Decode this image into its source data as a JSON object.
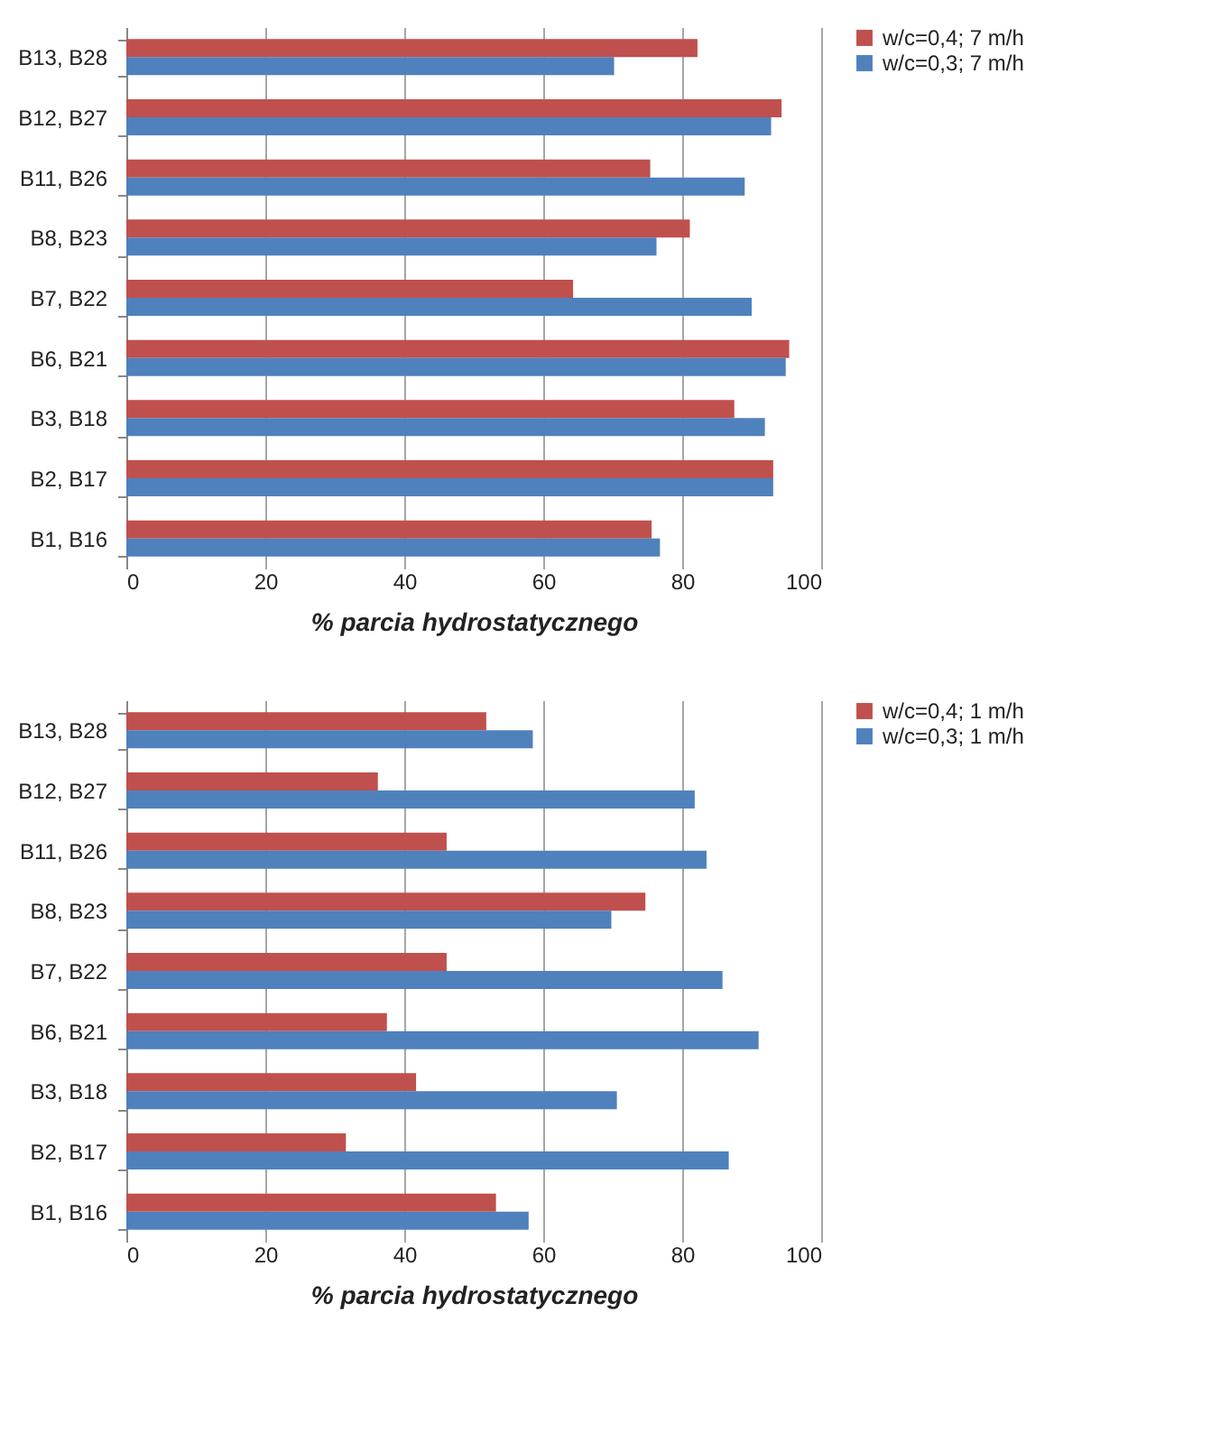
{
  "chart_data": [
    {
      "type": "bar",
      "orientation": "horizontal",
      "xlabel": "% parcia hydrostatycznego",
      "categories": [
        "B13, B28",
        "B12, B27",
        "B11, B26",
        "B8, B23",
        "B7, B22",
        "B6, B21",
        "B3, B18",
        "B2, B17",
        "B1, B16"
      ],
      "series": [
        {
          "name": "w/c=0,4; 7 m/h",
          "color": "#c0504d",
          "values": [
            82.2,
            94.3,
            75.4,
            81.1,
            64.3,
            95.4,
            87.5,
            93.1,
            75.6
          ]
        },
        {
          "name": "w/c=0,3; 7 m/h",
          "color": "#4f81bd",
          "values": [
            70.2,
            92.8,
            89,
            76.3,
            90,
            94.9,
            91.9,
            93.1,
            76.8
          ]
        }
      ],
      "xlim": [
        0,
        100
      ],
      "xticks": [
        0,
        20,
        40,
        60,
        80,
        100
      ],
      "grid": "x",
      "legend": "right"
    },
    {
      "type": "bar",
      "orientation": "horizontal",
      "xlabel": "% parcia hydrostatycznego",
      "categories": [
        "B13, B28",
        "B12, B27",
        "B11, B26",
        "B8, B23",
        "B7, B22",
        "B6, B21",
        "B3, B18",
        "B2, B17",
        "B1, B16"
      ],
      "series": [
        {
          "name": "w/c=0,4; 1 m/h",
          "color": "#c0504d",
          "values": [
            51.8,
            36.2,
            46.1,
            74.7,
            46.1,
            37.5,
            41.7,
            31.6,
            53.2
          ]
        },
        {
          "name": "w/c=0,3; 1 m/h",
          "color": "#4f81bd",
          "values": [
            58.5,
            81.8,
            83.5,
            69.8,
            85.8,
            91,
            70.6,
            86.7,
            57.9
          ]
        }
      ],
      "xlim": [
        0,
        100
      ],
      "xticks": [
        0,
        20,
        40,
        60,
        80,
        100
      ],
      "grid": "x",
      "legend": "right"
    }
  ]
}
